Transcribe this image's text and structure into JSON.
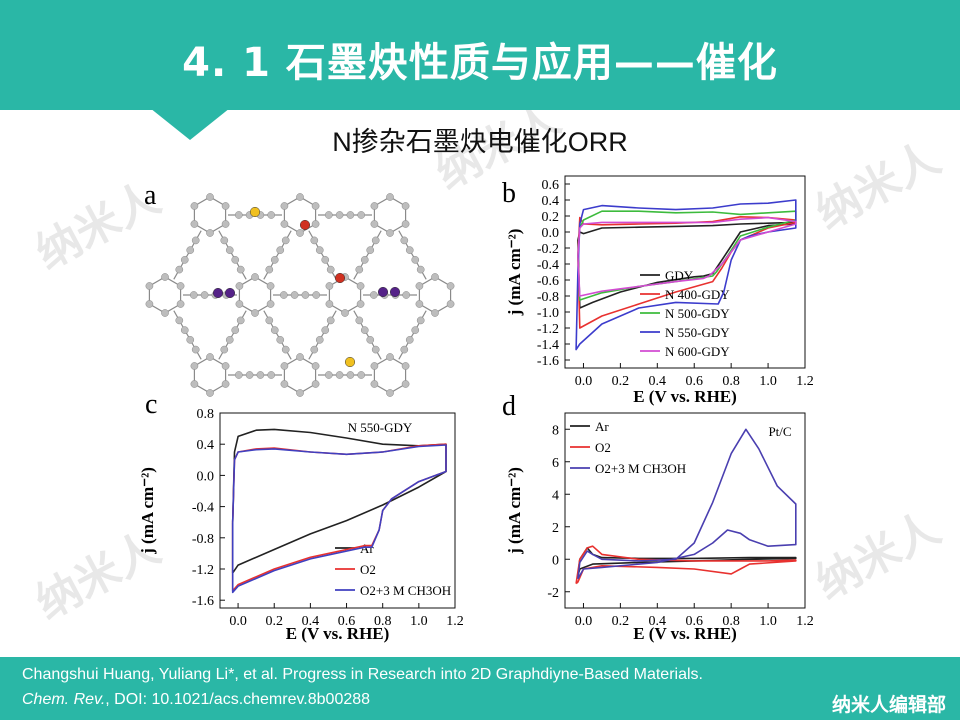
{
  "slide": {
    "title": "4. 1  石墨炔性质与应用——催化",
    "subtitle": "N掺杂石墨炔电催化ORR",
    "citation_line1": "Changshui Huang, Yuliang Li*, et al. Progress in Research into 2D Graphdiyne-Based Materials.",
    "citation_journal": "Chem. Rev.",
    "citation_doi": ", DOI: 10.1021/acs.chemrev.8b00288",
    "brand": "纳米人编辑部",
    "watermark": "纳米人"
  },
  "panel_a": {
    "label": "a",
    "atom_color": "#bdbdbd",
    "dopant_colors": [
      "#f0c020",
      "#d03020",
      "#552288"
    ]
  },
  "chart_data": [
    {
      "id": "b",
      "label": "b",
      "type": "line",
      "xlabel": "E (V vs. RHE)",
      "ylabel": "j (mA cm⁻²)",
      "xlim": [
        -0.1,
        1.2
      ],
      "ylim": [
        -1.7,
        0.7
      ],
      "xticks": [
        0.0,
        0.2,
        0.4,
        0.6,
        0.8,
        1.0,
        1.2
      ],
      "xtick_labels": [
        "0.0",
        "0.2",
        "0.4",
        "0.6",
        "0.8",
        "1.0",
        "1.2"
      ],
      "yticks": [
        0.6,
        0.4,
        0.2,
        0.0,
        -0.2,
        -0.4,
        -0.6,
        -0.8,
        -1.0,
        -1.2,
        -1.4,
        -1.6
      ],
      "ytick_labels": [
        "0.6",
        "0.4",
        "0.2",
        "0.0",
        "-0.2",
        "-0.4",
        "-0.6",
        "-0.8",
        "-1.0",
        "-1.2",
        "-1.4",
        "-1.6"
      ],
      "legend_position": "bottom-right",
      "series": [
        {
          "name": "GDY",
          "color": "#222222",
          "x": [
            -0.03,
            -0.02,
            0.0,
            0.1,
            0.3,
            0.5,
            0.7,
            0.85,
            1.0,
            1.15,
            1.15,
            1.0,
            0.85,
            0.75,
            0.7,
            0.65,
            0.6,
            0.4,
            0.2,
            0.05,
            -0.02,
            -0.03
          ],
          "y": [
            -0.1,
            0.0,
            -0.02,
            0.05,
            0.06,
            0.07,
            0.08,
            0.1,
            0.11,
            0.12,
            0.1,
            0.08,
            0.0,
            -0.35,
            -0.52,
            -0.55,
            -0.56,
            -0.63,
            -0.75,
            -0.88,
            -0.95,
            -0.1
          ]
        },
        {
          "name": "N 400-GDY",
          "color": "#e8312f",
          "x": [
            -0.03,
            -0.02,
            0.0,
            0.1,
            0.3,
            0.5,
            0.7,
            0.85,
            1.0,
            1.15,
            1.15,
            1.0,
            0.85,
            0.8,
            0.75,
            0.7,
            0.5,
            0.3,
            0.1,
            -0.02,
            -0.03
          ],
          "y": [
            -0.3,
            0.18,
            0.1,
            0.09,
            0.1,
            0.11,
            0.13,
            0.19,
            0.18,
            0.15,
            0.12,
            0.05,
            -0.1,
            -0.25,
            -0.45,
            -0.62,
            -0.75,
            -0.9,
            -1.05,
            -1.2,
            -0.3
          ]
        },
        {
          "name": "N 500-GDY",
          "color": "#3dbb3d",
          "x": [
            -0.03,
            -0.02,
            0.0,
            0.1,
            0.3,
            0.5,
            0.7,
            0.85,
            1.0,
            1.15,
            1.15,
            1.0,
            0.85,
            0.78,
            0.72,
            0.7,
            0.5,
            0.3,
            0.1,
            -0.02,
            -0.03
          ],
          "y": [
            -0.3,
            0.05,
            0.15,
            0.26,
            0.26,
            0.24,
            0.25,
            0.22,
            0.24,
            0.26,
            0.15,
            0.06,
            -0.05,
            -0.3,
            -0.5,
            -0.55,
            -0.62,
            -0.68,
            -0.76,
            -0.85,
            -0.3
          ]
        },
        {
          "name": "N 550-GDY",
          "color": "#3c3ccc",
          "x": [
            -0.03,
            -0.02,
            0.0,
            0.1,
            0.3,
            0.5,
            0.7,
            0.85,
            1.0,
            1.15,
            1.15,
            1.0,
            0.9,
            0.85,
            0.8,
            0.76,
            0.73,
            0.5,
            0.3,
            0.1,
            -0.02,
            -0.04,
            -0.03
          ],
          "y": [
            -0.5,
            0.1,
            0.28,
            0.33,
            0.3,
            0.28,
            0.3,
            0.35,
            0.36,
            0.4,
            0.05,
            0.0,
            -0.05,
            -0.1,
            -0.35,
            -0.75,
            -0.9,
            -0.88,
            -0.95,
            -1.15,
            -1.4,
            -1.47,
            -0.5
          ]
        },
        {
          "name": "N 600-GDY",
          "color": "#d24bd2",
          "x": [
            -0.03,
            -0.02,
            0.0,
            0.1,
            0.3,
            0.5,
            0.7,
            0.85,
            1.0,
            1.15,
            1.15,
            1.0,
            0.85,
            0.75,
            0.68,
            0.65,
            0.5,
            0.3,
            0.1,
            -0.02,
            -0.03
          ],
          "y": [
            -0.3,
            0.05,
            0.1,
            0.12,
            0.12,
            0.12,
            0.12,
            0.16,
            0.18,
            0.13,
            0.1,
            0.0,
            -0.1,
            -0.4,
            -0.55,
            -0.58,
            -0.62,
            -0.68,
            -0.74,
            -0.8,
            -0.3
          ]
        }
      ]
    },
    {
      "id": "c",
      "label": "c",
      "type": "line",
      "xlabel": "E (V vs. RHE)",
      "ylabel": "j (mA cm⁻²)",
      "xlim": [
        -0.1,
        1.2
      ],
      "ylim": [
        -1.7,
        0.8
      ],
      "xticks": [
        0.0,
        0.2,
        0.4,
        0.6,
        0.8,
        1.0,
        1.2
      ],
      "xtick_labels": [
        "0.0",
        "0.2",
        "0.4",
        "0.6",
        "0.8",
        "1.0",
        "1.2"
      ],
      "yticks": [
        0.8,
        0.4,
        0.0,
        -0.4,
        -0.8,
        -1.2,
        -1.6
      ],
      "ytick_labels": [
        "0.8",
        "0.4",
        "0.0",
        "-0.4",
        "-0.8",
        "-1.2",
        "-1.6"
      ],
      "annotation": "N 550-GDY",
      "legend_position": "bottom-right",
      "series": [
        {
          "name": "Ar",
          "color": "#222222",
          "x": [
            -0.03,
            -0.02,
            0.0,
            0.1,
            0.2,
            0.4,
            0.6,
            0.8,
            1.0,
            1.15,
            1.15,
            1.0,
            0.8,
            0.6,
            0.4,
            0.2,
            0.0,
            -0.03,
            -0.03
          ],
          "y": [
            -0.6,
            0.3,
            0.5,
            0.58,
            0.59,
            0.55,
            0.48,
            0.4,
            0.38,
            0.4,
            0.05,
            -0.15,
            -0.38,
            -0.58,
            -0.75,
            -0.95,
            -1.15,
            -1.25,
            -0.6
          ]
        },
        {
          "name": "O2",
          "color": "#e8312f",
          "x": [
            -0.03,
            -0.02,
            0.0,
            0.1,
            0.2,
            0.4,
            0.6,
            0.8,
            1.0,
            1.15,
            1.15,
            1.0,
            0.85,
            0.8,
            0.78,
            0.74,
            0.7,
            0.4,
            0.2,
            0.0,
            -0.03,
            -0.03
          ],
          "y": [
            -0.6,
            0.2,
            0.3,
            0.34,
            0.35,
            0.3,
            0.27,
            0.3,
            0.38,
            0.4,
            0.05,
            -0.08,
            -0.3,
            -0.45,
            -0.7,
            -0.9,
            -0.9,
            -1.05,
            -1.2,
            -1.4,
            -1.48,
            -0.6
          ]
        },
        {
          "name": "O2+3 M CH3OH",
          "color": "#4040c0",
          "x": [
            -0.03,
            -0.02,
            0.0,
            0.1,
            0.2,
            0.4,
            0.6,
            0.8,
            1.0,
            1.15,
            1.15,
            1.0,
            0.85,
            0.8,
            0.78,
            0.74,
            0.7,
            0.4,
            0.2,
            0.0,
            -0.03,
            -0.03
          ],
          "y": [
            -0.6,
            0.2,
            0.3,
            0.33,
            0.34,
            0.3,
            0.27,
            0.3,
            0.37,
            0.39,
            0.05,
            -0.08,
            -0.3,
            -0.45,
            -0.7,
            -0.92,
            -0.92,
            -1.07,
            -1.22,
            -1.42,
            -1.5,
            -0.6
          ]
        }
      ]
    },
    {
      "id": "d",
      "label": "d",
      "type": "line",
      "xlabel": "E (V vs. RHE)",
      "ylabel": "j (mA cm⁻²)",
      "xlim": [
        -0.1,
        1.2
      ],
      "ylim": [
        -3,
        9
      ],
      "xticks": [
        0.0,
        0.2,
        0.4,
        0.6,
        0.8,
        1.0,
        1.2
      ],
      "xtick_labels": [
        "0.0",
        "0.2",
        "0.4",
        "0.6",
        "0.8",
        "1.0",
        "1.2"
      ],
      "yticks": [
        8,
        6,
        4,
        2,
        0,
        -2
      ],
      "ytick_labels": [
        "8",
        "6",
        "4",
        "2",
        "0",
        "-2"
      ],
      "annotation": "Pt/C",
      "legend_position": "top-left",
      "series": [
        {
          "name": "Ar",
          "color": "#222222",
          "x": [
            -0.03,
            -0.02,
            0.02,
            0.05,
            0.1,
            0.3,
            0.6,
            0.9,
            1.15,
            1.15,
            0.9,
            0.6,
            0.3,
            0.05,
            -0.02,
            -0.03
          ],
          "y": [
            -1.0,
            0.0,
            0.7,
            0.3,
            0.1,
            0.05,
            0.05,
            0.1,
            0.1,
            0.05,
            0.0,
            -0.1,
            -0.2,
            -0.3,
            -0.6,
            -1.0
          ]
        },
        {
          "name": "O2",
          "color": "#e8312f",
          "x": [
            -0.04,
            -0.02,
            0.02,
            0.05,
            0.1,
            0.3,
            0.6,
            0.8,
            1.0,
            1.15,
            1.15,
            0.9,
            0.85,
            0.8,
            0.6,
            0.4,
            0.1,
            0.0,
            -0.03,
            -0.04
          ],
          "y": [
            -1.5,
            0.0,
            0.7,
            0.8,
            0.3,
            0.0,
            -0.1,
            -0.1,
            -0.1,
            -0.05,
            -0.1,
            -0.3,
            -0.6,
            -0.9,
            -0.6,
            -0.5,
            -0.4,
            -0.6,
            -1.4,
            -1.5
          ]
        },
        {
          "name": "O2+3 M CH3OH",
          "color": "#4a3fb0",
          "x": [
            -0.03,
            -0.02,
            0.02,
            0.05,
            0.1,
            0.3,
            0.5,
            0.6,
            0.7,
            0.8,
            0.88,
            0.95,
            1.05,
            1.15,
            1.15,
            1.0,
            0.9,
            0.85,
            0.78,
            0.7,
            0.6,
            0.4,
            0.1,
            0.0,
            -0.03
          ],
          "y": [
            -1.2,
            -0.2,
            0.5,
            0.3,
            0.0,
            -0.1,
            0.0,
            1.0,
            3.5,
            6.5,
            8.0,
            6.8,
            4.5,
            3.4,
            0.9,
            0.8,
            1.2,
            1.6,
            1.8,
            1.0,
            0.3,
            -0.2,
            -0.5,
            -0.6,
            -1.2
          ]
        }
      ]
    }
  ]
}
